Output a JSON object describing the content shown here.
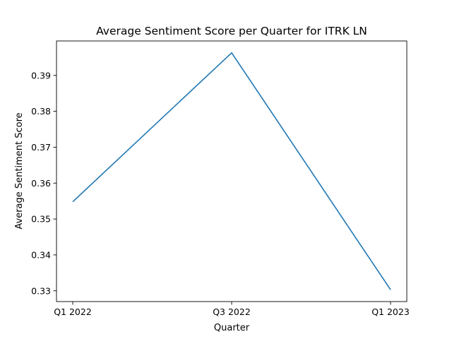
{
  "chart_data": {
    "type": "line",
    "title": "Average Sentiment Score per Quarter for ITRK LN",
    "xlabel": "Quarter",
    "ylabel": "Average Sentiment Score",
    "categories": [
      "Q1 2022",
      "Q3 2022",
      "Q1 2023"
    ],
    "series": [
      {
        "values": [
          0.3548,
          0.3963,
          0.3303
        ],
        "color": "#1f77b4"
      }
    ],
    "yticks": [
      "0.33",
      "0.34",
      "0.35",
      "0.36",
      "0.37",
      "0.38",
      "0.39"
    ],
    "ylim": [
      0.327,
      0.3996
    ],
    "grid": false,
    "legend": "none"
  }
}
